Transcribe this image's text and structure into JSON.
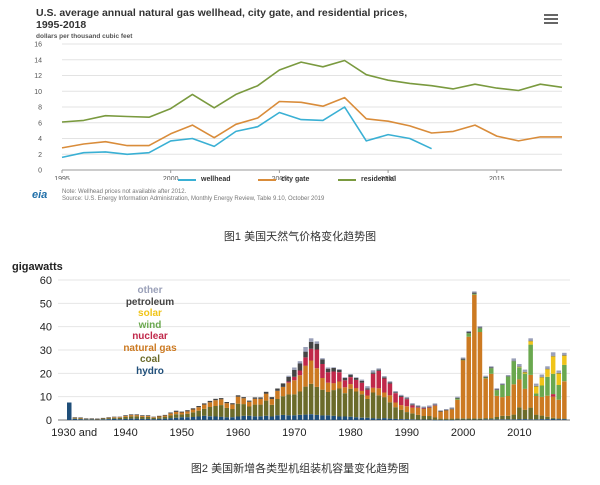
{
  "captions": {
    "fig1": "图1 美国天然气价格变化趋势图",
    "fig2": "图2 美国新增各类型机组装机容量变化趋势图"
  },
  "fig1": {
    "title_line1": "U.S. average annual natural gas wellhead, city gate, and residential prices,",
    "title_line2": "1995-2018",
    "units": "dollars per thousand cubic feet",
    "note": "Note: Wellhead prices not available after 2012.",
    "source": "Source: U.S. Energy Information Administration, Monthly Energy Review, Table 9.10, October 2019",
    "logo": "eia",
    "legend": [
      "wellhead",
      "city gate",
      "residential"
    ]
  },
  "fig2": {
    "units": "gigawatts",
    "legend": [
      "other",
      "petroleum",
      "solar",
      "wind",
      "nuclear",
      "natural gas",
      "coal",
      "hydro"
    ]
  },
  "colors": {
    "wellhead": "#3ab0d4",
    "city_gate": "#d98c3a",
    "residential": "#7a9a3f",
    "other": "#9aa0b8",
    "petroleum": "#444444",
    "solar": "#f0c419",
    "wind": "#6aa84f",
    "nuclear": "#c0284a",
    "natural_gas": "#cc7a22",
    "coal": "#6b6b2a",
    "hydro": "#1f4e79"
  },
  "chart_data": [
    {
      "type": "line",
      "x_ticks": [
        1995,
        2000,
        2005,
        2010,
        2015
      ],
      "y_ticks": [
        0,
        2,
        4,
        6,
        8,
        10,
        12,
        14,
        16
      ],
      "xlim": [
        1995,
        2018
      ],
      "ylim": [
        0,
        16
      ],
      "grid": true,
      "legend_position": "bottom",
      "x": [
        1995,
        1996,
        1997,
        1998,
        1999,
        2000,
        2001,
        2002,
        2003,
        2004,
        2005,
        2006,
        2007,
        2008,
        2009,
        2010,
        2011,
        2012,
        2013,
        2014,
        2015,
        2016,
        2017,
        2018
      ],
      "series": [
        {
          "name": "wellhead",
          "values": [
            1.6,
            2.2,
            2.3,
            2.0,
            2.2,
            3.7,
            4.0,
            3.0,
            4.9,
            5.5,
            7.3,
            6.4,
            6.3,
            8.0,
            3.7,
            4.5,
            4.0,
            2.7,
            null,
            null,
            null,
            null,
            null,
            null
          ]
        },
        {
          "name": "city gate",
          "values": [
            2.8,
            3.3,
            3.6,
            3.1,
            3.1,
            4.6,
            5.7,
            4.1,
            5.8,
            6.6,
            8.7,
            8.6,
            8.1,
            9.2,
            6.5,
            6.2,
            5.6,
            4.7,
            4.9,
            5.7,
            4.3,
            3.7,
            4.2,
            4.2
          ]
        },
        {
          "name": "residential",
          "values": [
            6.1,
            6.3,
            6.9,
            6.8,
            6.7,
            7.8,
            9.6,
            7.9,
            9.6,
            10.7,
            12.7,
            13.7,
            13.1,
            13.9,
            12.1,
            11.4,
            11.0,
            10.7,
            10.3,
            10.9,
            10.4,
            10.1,
            10.9,
            10.5
          ]
        }
      ]
    },
    {
      "type": "bar",
      "stacked": true,
      "ylim": [
        0,
        60
      ],
      "y_ticks": [
        0,
        10,
        20,
        30,
        40,
        50,
        60
      ],
      "x_tick_labels": [
        "1930 and",
        "1940",
        "1950",
        "1960",
        "1970",
        "1980",
        "1990",
        "2000",
        "2010"
      ],
      "x_tick_years": [
        1930,
        1940,
        1950,
        1960,
        1970,
        1980,
        1990,
        2000,
        2010
      ],
      "xlim": [
        1928,
        2019
      ],
      "grid": true,
      "legend_position": "top-left",
      "years": [
        1930,
        1931,
        1932,
        1933,
        1934,
        1935,
        1936,
        1937,
        1938,
        1939,
        1940,
        1941,
        1942,
        1943,
        1944,
        1945,
        1946,
        1947,
        1948,
        1949,
        1950,
        1951,
        1952,
        1953,
        1954,
        1955,
        1956,
        1957,
        1958,
        1959,
        1960,
        1961,
        1962,
        1963,
        1964,
        1965,
        1966,
        1967,
        1968,
        1969,
        1970,
        1971,
        1972,
        1973,
        1974,
        1975,
        1976,
        1977,
        1978,
        1979,
        1980,
        1981,
        1982,
        1983,
        1984,
        1985,
        1986,
        1987,
        1988,
        1989,
        1990,
        1991,
        1992,
        1993,
        1994,
        1995,
        1996,
        1997,
        1998,
        1999,
        2000,
        2001,
        2002,
        2003,
        2004,
        2005,
        2006,
        2007,
        2008,
        2009,
        2010,
        2011,
        2012,
        2013,
        2014,
        2015,
        2016,
        2017,
        2018
      ],
      "series": [
        {
          "name": "hydro",
          "values": [
            7.5,
            0.5,
            0.4,
            0.3,
            0.3,
            0.2,
            0.3,
            0.4,
            0.5,
            0.4,
            0.5,
            0.6,
            0.6,
            0.5,
            0.5,
            0.4,
            0.5,
            0.6,
            0.8,
            1.0,
            1.2,
            1.2,
            1.3,
            1.5,
            1.8,
            1.6,
            1.5,
            1.4,
            1.2,
            1.2,
            1.5,
            1.8,
            1.8,
            1.6,
            1.6,
            1.8,
            1.5,
            2.0,
            2.2,
            2.0,
            2.0,
            2.2,
            2.3,
            2.5,
            2.2,
            2.0,
            2.0,
            1.8,
            1.5,
            1.5,
            1.4,
            1.2,
            1.0,
            1.0,
            0.8,
            0.6,
            0.8,
            0.6,
            0.5,
            0.4,
            0.4,
            0.3,
            0.2,
            0.2,
            0.2,
            0.1,
            0.1,
            0.1,
            0.1,
            0.2,
            0.2,
            0.2,
            0.2,
            0.2,
            0.3,
            0.3,
            0.3,
            0.3,
            0.3,
            0.3,
            0.4,
            0.4,
            0.3,
            0.3,
            0.4,
            0.4,
            0.5,
            0.4,
            0.4
          ]
        },
        {
          "name": "coal",
          "values": [
            0,
            0.3,
            0.3,
            0.2,
            0.2,
            0.2,
            0.3,
            0.4,
            0.4,
            0.5,
            0.8,
            1.0,
            1.0,
            0.8,
            0.8,
            0.5,
            0.6,
            0.8,
            1.2,
            1.5,
            1.2,
            1.5,
            2.0,
            2.5,
            3.0,
            4.0,
            4.5,
            5.0,
            4.0,
            3.5,
            5.5,
            5.0,
            4.0,
            5.0,
            5.0,
            6.5,
            5.0,
            7.0,
            8.0,
            9.0,
            9.0,
            10.0,
            12.0,
            13.0,
            12.0,
            11.0,
            10.0,
            11.0,
            12.0,
            10.0,
            12.0,
            11.0,
            10.0,
            8.0,
            11.0,
            10.0,
            9.0,
            7.0,
            5.0,
            4.0,
            3.0,
            2.5,
            2.0,
            1.5,
            1.5,
            1.0,
            0.5,
            0.5,
            0.5,
            0.5,
            0.5,
            0.5,
            0.5,
            0.5,
            0.5,
            0.5,
            1.0,
            1.5,
            1.5,
            2.0,
            5.0,
            4.0,
            5.0,
            2.0,
            1.5,
            1.0,
            0.5,
            0.3,
            0.2
          ]
        },
        {
          "name": "natural gas",
          "values": [
            0,
            0.2,
            0.2,
            0.1,
            0.1,
            0.1,
            0.2,
            0.2,
            0.3,
            0.3,
            0.4,
            0.5,
            0.5,
            0.4,
            0.4,
            0.3,
            0.4,
            0.5,
            0.8,
            1.0,
            0.8,
            1.0,
            1.2,
            1.5,
            1.8,
            2.0,
            2.5,
            2.5,
            2.0,
            2.0,
            3.0,
            2.5,
            2.0,
            2.5,
            2.5,
            3.0,
            2.5,
            3.5,
            4.0,
            5.0,
            6.0,
            7.0,
            9.0,
            10.0,
            8.0,
            5.0,
            4.0,
            3.0,
            3.0,
            2.5,
            2.0,
            1.5,
            1.5,
            1.5,
            2.0,
            3.0,
            2.0,
            3.0,
            2.0,
            2.0,
            2.5,
            2.5,
            3.0,
            3.0,
            3.5,
            5.0,
            3.0,
            3.5,
            4.0,
            8.0,
            25.0,
            35.0,
            53.0,
            37.0,
            17.0,
            19.0,
            9.0,
            8.0,
            8.5,
            13.0,
            12.0,
            9.0,
            14.0,
            8.0,
            8.0,
            9.0,
            9.0,
            8.0,
            16.0
          ]
        },
        {
          "name": "nuclear",
          "values": [
            0,
            0,
            0,
            0,
            0,
            0,
            0,
            0,
            0,
            0,
            0,
            0,
            0,
            0,
            0,
            0,
            0,
            0,
            0,
            0,
            0,
            0,
            0,
            0,
            0,
            0,
            0,
            0,
            0,
            0,
            0,
            0,
            0,
            0,
            0,
            0,
            0,
            0,
            0,
            0.5,
            1.5,
            2.0,
            3.5,
            5.0,
            8.0,
            6.0,
            4.5,
            5.0,
            4.0,
            3.0,
            3.0,
            3.5,
            3.5,
            2.5,
            6.0,
            7.5,
            6.0,
            5.0,
            4.0,
            3.5,
            3.0,
            1.0,
            0.3,
            0.3,
            0.2,
            0.2,
            0,
            0,
            0,
            0,
            0,
            0,
            0,
            0,
            0,
            0,
            0,
            0,
            0,
            0,
            0,
            0,
            0,
            0,
            0,
            0,
            1.1,
            0,
            0
          ]
        },
        {
          "name": "wind",
          "values": [
            0,
            0,
            0,
            0,
            0,
            0,
            0,
            0,
            0,
            0,
            0,
            0,
            0,
            0,
            0,
            0,
            0,
            0,
            0,
            0,
            0,
            0,
            0,
            0,
            0,
            0,
            0,
            0,
            0,
            0,
            0,
            0,
            0,
            0,
            0,
            0,
            0,
            0,
            0,
            0,
            0,
            0,
            0,
            0,
            0,
            0,
            0,
            0,
            0,
            0,
            0,
            0,
            0,
            0,
            0,
            0,
            0,
            0,
            0,
            0,
            0,
            0,
            0,
            0,
            0,
            0,
            0,
            0,
            0,
            0.5,
            0.1,
            1.5,
            0.4,
            1.6,
            0.4,
            2.4,
            2.5,
            5.2,
            8.3,
            9.9,
            5.2,
            6.5,
            13.0,
            1.1,
            4.9,
            8.1,
            8.7,
            6.3,
            7.0
          ]
        },
        {
          "name": "solar",
          "values": [
            0,
            0,
            0,
            0,
            0,
            0,
            0,
            0,
            0,
            0,
            0,
            0,
            0,
            0,
            0,
            0,
            0,
            0,
            0,
            0,
            0,
            0,
            0,
            0,
            0,
            0,
            0,
            0,
            0,
            0,
            0,
            0,
            0,
            0,
            0,
            0,
            0,
            0,
            0,
            0,
            0,
            0,
            0,
            0,
            0,
            0,
            0,
            0,
            0,
            0,
            0,
            0,
            0,
            0,
            0,
            0,
            0,
            0,
            0,
            0,
            0,
            0,
            0,
            0,
            0,
            0,
            0,
            0,
            0,
            0,
            0,
            0,
            0,
            0,
            0,
            0,
            0,
            0,
            0,
            0,
            0.2,
            0.5,
            1.5,
            3.0,
            3.5,
            3.3,
            7.5,
            5.0,
            4.0
          ]
        },
        {
          "name": "petroleum",
          "values": [
            0,
            0.2,
            0.2,
            0.1,
            0.1,
            0.1,
            0.1,
            0.2,
            0.2,
            0.2,
            0.3,
            0.3,
            0.3,
            0.3,
            0.3,
            0.2,
            0.3,
            0.3,
            0.4,
            0.5,
            0.4,
            0.5,
            0.5,
            0.5,
            0.5,
            0.6,
            0.6,
            0.5,
            0.5,
            0.5,
            0.6,
            0.5,
            0.5,
            0.6,
            0.6,
            0.8,
            0.8,
            1.0,
            1.5,
            2.0,
            3.0,
            3.0,
            2.5,
            3.0,
            2.5,
            2.0,
            1.5,
            1.5,
            1.0,
            1.0,
            1.0,
            0.8,
            0.8,
            0.5,
            0.5,
            0.5,
            0.5,
            0.5,
            0.4,
            0.4,
            0.4,
            0.4,
            0.3,
            0.3,
            0.3,
            0.3,
            0.3,
            0.3,
            0.3,
            0.3,
            0.5,
            0.5,
            0.5,
            0.4,
            0.3,
            0.3,
            0.3,
            0.2,
            0.2,
            0.2,
            0.2,
            0.2,
            0.2,
            0.2,
            0.2,
            0.2,
            0.2,
            0.2,
            0.2
          ]
        },
        {
          "name": "other",
          "values": [
            0,
            0,
            0,
            0,
            0,
            0,
            0,
            0,
            0,
            0,
            0,
            0,
            0,
            0,
            0,
            0,
            0,
            0,
            0,
            0,
            0,
            0,
            0,
            0,
            0,
            0,
            0,
            0,
            0,
            0,
            0,
            0,
            0,
            0,
            0,
            0,
            0,
            0,
            0,
            0.5,
            1.0,
            1.0,
            2.0,
            1.5,
            1.0,
            0.5,
            0.5,
            0.3,
            0.3,
            0.3,
            0.3,
            0.3,
            0.5,
            1.0,
            1.0,
            0.5,
            0.5,
            0.5,
            0.5,
            0.5,
            0.5,
            0.5,
            0.5,
            0.5,
            0.5,
            0.5,
            0.3,
            0.3,
            0.5,
            0.5,
            0.5,
            0.5,
            0.5,
            0.5,
            0.5,
            0.5,
            0.5,
            0.5,
            0.5,
            1.0,
            1.0,
            1.0,
            1.0,
            1.0,
            1.0,
            1.0,
            1.5,
            1.0,
            1.0
          ]
        }
      ]
    }
  ]
}
